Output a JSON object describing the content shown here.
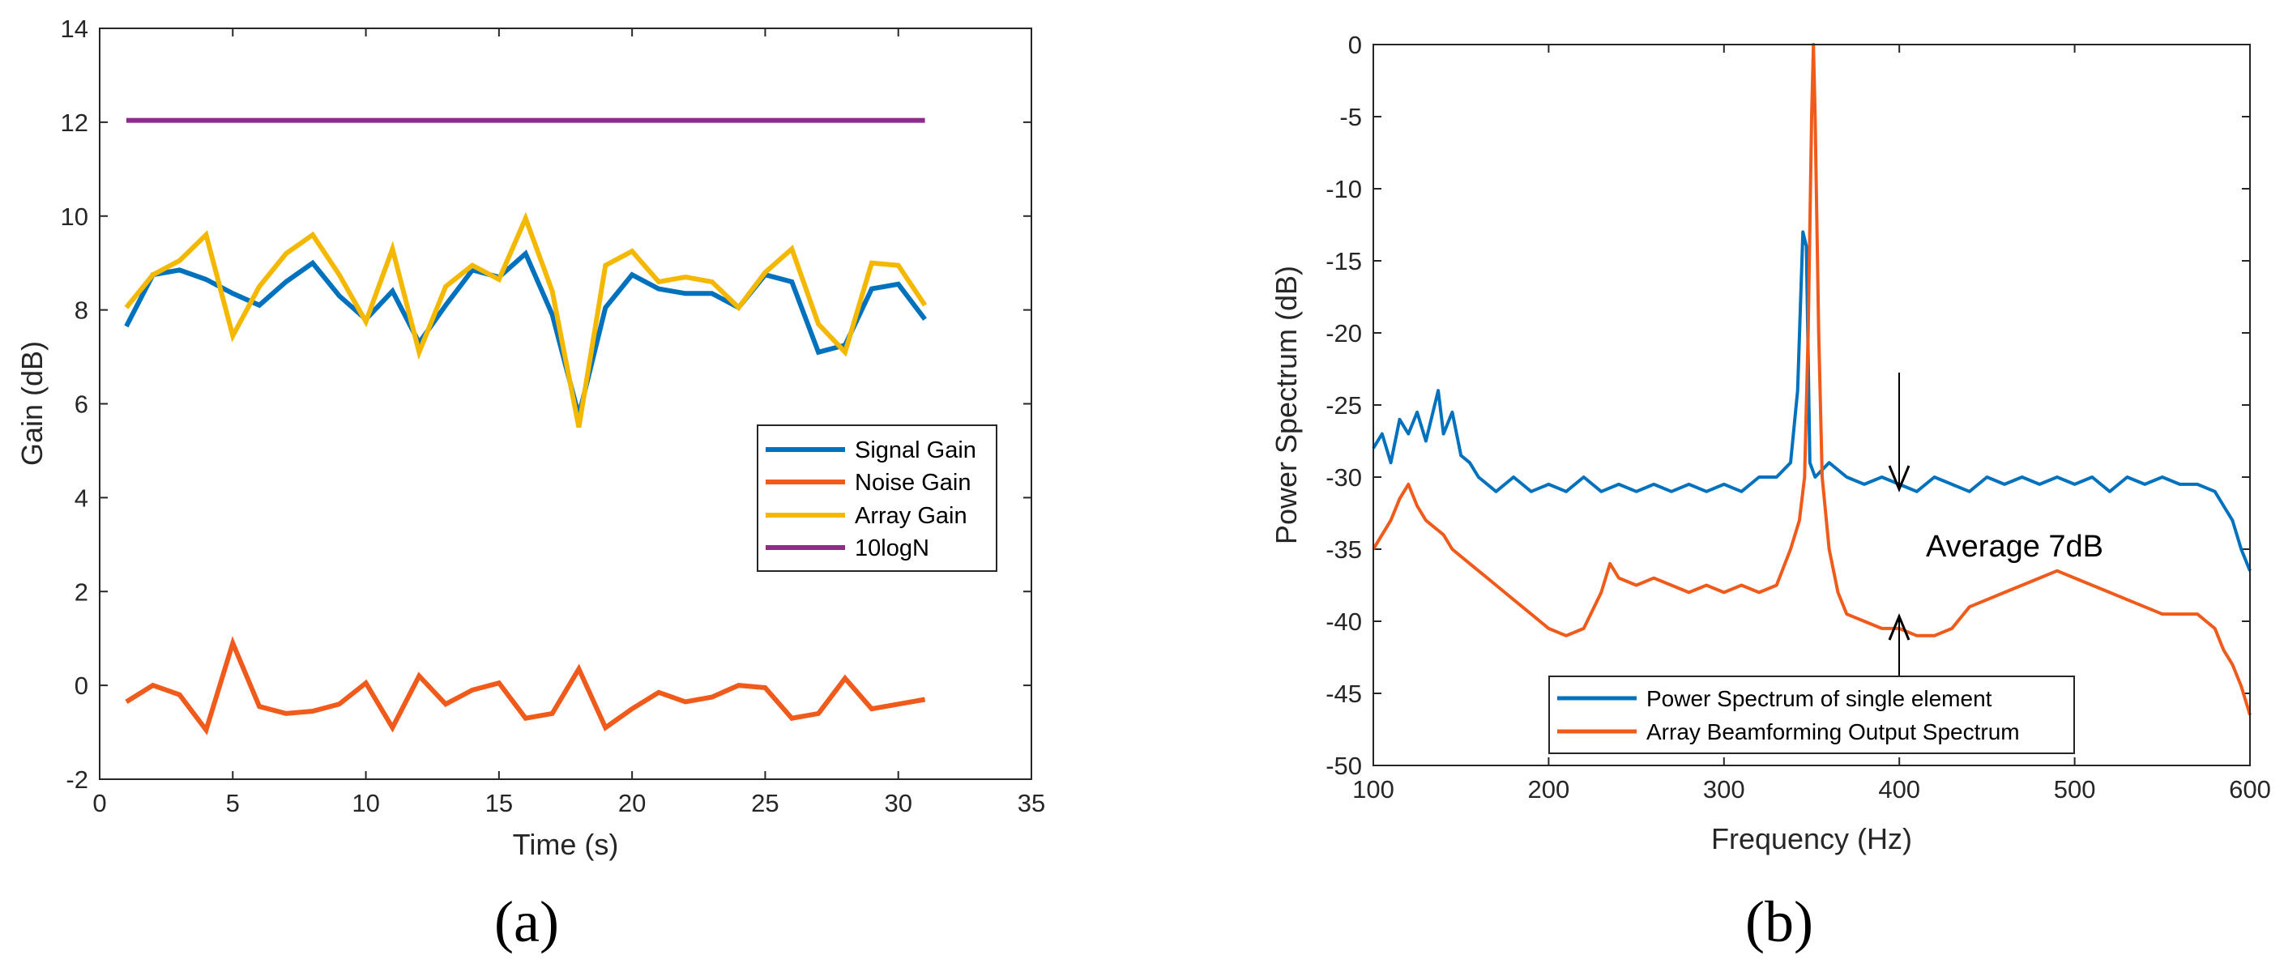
{
  "colors": {
    "blue": "#0072BD",
    "orange": "#F05A1A",
    "yellow": "#F5B800",
    "purple": "#8E2C8E"
  },
  "chart_data": [
    {
      "type": "line",
      "panel_label": "(a)",
      "title": "",
      "xlabel": "Time (s)",
      "ylabel": "Gain (dB)",
      "xlim": [
        0,
        35
      ],
      "ylim": [
        -2,
        14
      ],
      "xticks": [
        0,
        5,
        10,
        15,
        20,
        25,
        30,
        35
      ],
      "yticks": [
        -2,
        0,
        2,
        4,
        6,
        8,
        10,
        12,
        14
      ],
      "x": [
        1,
        2,
        3,
        4,
        5,
        6,
        7,
        8,
        9,
        10,
        11,
        12,
        13,
        14,
        15,
        16,
        17,
        18,
        19,
        20,
        21,
        22,
        23,
        24,
        25,
        26,
        27,
        28,
        29,
        30,
        31
      ],
      "series": [
        {
          "name": "Signal Gain",
          "color": "#0072BD",
          "values": [
            7.65,
            8.75,
            8.85,
            8.65,
            8.35,
            8.1,
            8.6,
            9.0,
            8.3,
            7.8,
            8.4,
            7.3,
            8.1,
            8.85,
            8.7,
            9.2,
            7.9,
            5.75,
            8.05,
            8.75,
            8.45,
            8.35,
            8.35,
            8.05,
            8.75,
            8.6,
            7.1,
            7.25,
            8.45,
            8.55,
            7.8
          ]
        },
        {
          "name": "Noise Gain",
          "color": "#F05A1A",
          "values": [
            -0.35,
            0.0,
            -0.2,
            -0.95,
            0.9,
            -0.45,
            -0.6,
            -0.55,
            -0.4,
            0.05,
            -0.9,
            0.2,
            -0.4,
            -0.1,
            0.05,
            -0.7,
            -0.6,
            0.35,
            -0.9,
            -0.5,
            -0.15,
            -0.35,
            -0.25,
            0.0,
            -0.05,
            -0.7,
            -0.6,
            0.15,
            -0.5,
            -0.4,
            -0.3
          ]
        },
        {
          "name": "Array Gain",
          "color": "#F5B800",
          "values": [
            8.05,
            8.75,
            9.05,
            9.6,
            7.45,
            8.5,
            9.2,
            9.6,
            8.75,
            7.75,
            9.3,
            7.1,
            8.5,
            8.95,
            8.65,
            9.95,
            8.4,
            5.5,
            8.95,
            9.25,
            8.6,
            8.7,
            8.6,
            8.05,
            8.8,
            9.3,
            7.7,
            7.1,
            9.0,
            8.95,
            8.1
          ]
        },
        {
          "name": "10logN",
          "color": "#8E2C8E",
          "values": [
            12.04,
            12.04,
            12.04,
            12.04,
            12.04,
            12.04,
            12.04,
            12.04,
            12.04,
            12.04,
            12.04,
            12.04,
            12.04,
            12.04,
            12.04,
            12.04,
            12.04,
            12.04,
            12.04,
            12.04,
            12.04,
            12.04,
            12.04,
            12.04,
            12.04,
            12.04,
            12.04,
            12.04,
            12.04,
            12.04,
            12.04
          ]
        }
      ],
      "legend_position": "bottom-right"
    },
    {
      "type": "line",
      "panel_label": "(b)",
      "title": "",
      "xlabel": "Frequency (Hz)",
      "ylabel": "Power Spectrum (dB)",
      "xlim": [
        100,
        600
      ],
      "ylim": [
        -50,
        0
      ],
      "xticks": [
        100,
        200,
        300,
        400,
        500,
        600
      ],
      "yticks": [
        0,
        -5,
        -10,
        -15,
        -20,
        -25,
        -30,
        -35,
        -40,
        -45,
        -50
      ],
      "annotation": "Average 7dB",
      "annotation_arrow_x": 400,
      "series": [
        {
          "name": "Power Spectrum of single element",
          "color": "#0072BD",
          "points": [
            [
              100,
              -28
            ],
            [
              105,
              -27
            ],
            [
              110,
              -29
            ],
            [
              115,
              -26
            ],
            [
              120,
              -27
            ],
            [
              125,
              -25.5
            ],
            [
              130,
              -27.5
            ],
            [
              133,
              -26
            ],
            [
              137,
              -24
            ],
            [
              140,
              -27
            ],
            [
              145,
              -25.5
            ],
            [
              150,
              -28.5
            ],
            [
              155,
              -29
            ],
            [
              160,
              -30
            ],
            [
              170,
              -31
            ],
            [
              180,
              -30
            ],
            [
              190,
              -31
            ],
            [
              200,
              -30.5
            ],
            [
              210,
              -31
            ],
            [
              220,
              -30
            ],
            [
              230,
              -31
            ],
            [
              240,
              -30.5
            ],
            [
              250,
              -31
            ],
            [
              260,
              -30.5
            ],
            [
              270,
              -31
            ],
            [
              280,
              -30.5
            ],
            [
              290,
              -31
            ],
            [
              300,
              -30.5
            ],
            [
              310,
              -31
            ],
            [
              320,
              -30
            ],
            [
              330,
              -30
            ],
            [
              338,
              -29
            ],
            [
              342,
              -24
            ],
            [
              345,
              -13
            ],
            [
              347,
              -14
            ],
            [
              349,
              -29
            ],
            [
              352,
              -30
            ],
            [
              360,
              -29
            ],
            [
              370,
              -30
            ],
            [
              380,
              -30.5
            ],
            [
              390,
              -30
            ],
            [
              400,
              -30.5
            ],
            [
              410,
              -31
            ],
            [
              420,
              -30
            ],
            [
              430,
              -30.5
            ],
            [
              440,
              -31
            ],
            [
              450,
              -30
            ],
            [
              460,
              -30.5
            ],
            [
              470,
              -30
            ],
            [
              480,
              -30.5
            ],
            [
              490,
              -30
            ],
            [
              500,
              -30.5
            ],
            [
              510,
              -30
            ],
            [
              520,
              -31
            ],
            [
              530,
              -30
            ],
            [
              540,
              -30.5
            ],
            [
              550,
              -30
            ],
            [
              560,
              -30.5
            ],
            [
              570,
              -30.5
            ],
            [
              580,
              -31
            ],
            [
              585,
              -32
            ],
            [
              590,
              -33
            ],
            [
              595,
              -35
            ],
            [
              600,
              -36.5
            ]
          ]
        },
        {
          "name": "Array Beamforming Output Spectrum",
          "color": "#F05A1A",
          "points": [
            [
              100,
              -35
            ],
            [
              105,
              -34
            ],
            [
              110,
              -33
            ],
            [
              115,
              -31.5
            ],
            [
              120,
              -30.5
            ],
            [
              125,
              -32
            ],
            [
              130,
              -33
            ],
            [
              135,
              -33.5
            ],
            [
              140,
              -34
            ],
            [
              145,
              -35
            ],
            [
              150,
              -35.5
            ],
            [
              155,
              -36
            ],
            [
              160,
              -36.5
            ],
            [
              165,
              -37
            ],
            [
              170,
              -37.5
            ],
            [
              180,
              -38.5
            ],
            [
              190,
              -39.5
            ],
            [
              200,
              -40.5
            ],
            [
              210,
              -41
            ],
            [
              220,
              -40.5
            ],
            [
              230,
              -38
            ],
            [
              235,
              -36
            ],
            [
              240,
              -37
            ],
            [
              250,
              -37.5
            ],
            [
              260,
              -37
            ],
            [
              270,
              -37.5
            ],
            [
              280,
              -38
            ],
            [
              290,
              -37.5
            ],
            [
              300,
              -38
            ],
            [
              310,
              -37.5
            ],
            [
              320,
              -38
            ],
            [
              330,
              -37.5
            ],
            [
              338,
              -35
            ],
            [
              343,
              -33
            ],
            [
              346,
              -30
            ],
            [
              348,
              -20
            ],
            [
              350,
              -5
            ],
            [
              351,
              0
            ],
            [
              352,
              -5
            ],
            [
              354,
              -20
            ],
            [
              356,
              -30
            ],
            [
              360,
              -35
            ],
            [
              365,
              -38
            ],
            [
              370,
              -39.5
            ],
            [
              380,
              -40
            ],
            [
              390,
              -40.5
            ],
            [
              400,
              -40.5
            ],
            [
              410,
              -41
            ],
            [
              420,
              -41
            ],
            [
              430,
              -40.5
            ],
            [
              440,
              -39
            ],
            [
              450,
              -38.5
            ],
            [
              460,
              -38
            ],
            [
              470,
              -37.5
            ],
            [
              480,
              -37
            ],
            [
              490,
              -36.5
            ],
            [
              500,
              -37
            ],
            [
              510,
              -37.5
            ],
            [
              520,
              -38
            ],
            [
              530,
              -38.5
            ],
            [
              540,
              -39
            ],
            [
              550,
              -39.5
            ],
            [
              560,
              -39.5
            ],
            [
              570,
              -39.5
            ],
            [
              575,
              -40
            ],
            [
              580,
              -40.5
            ],
            [
              585,
              -42
            ],
            [
              590,
              -43
            ],
            [
              595,
              -44.5
            ],
            [
              600,
              -46.5
            ]
          ]
        }
      ],
      "legend_position": "bottom-center"
    }
  ]
}
